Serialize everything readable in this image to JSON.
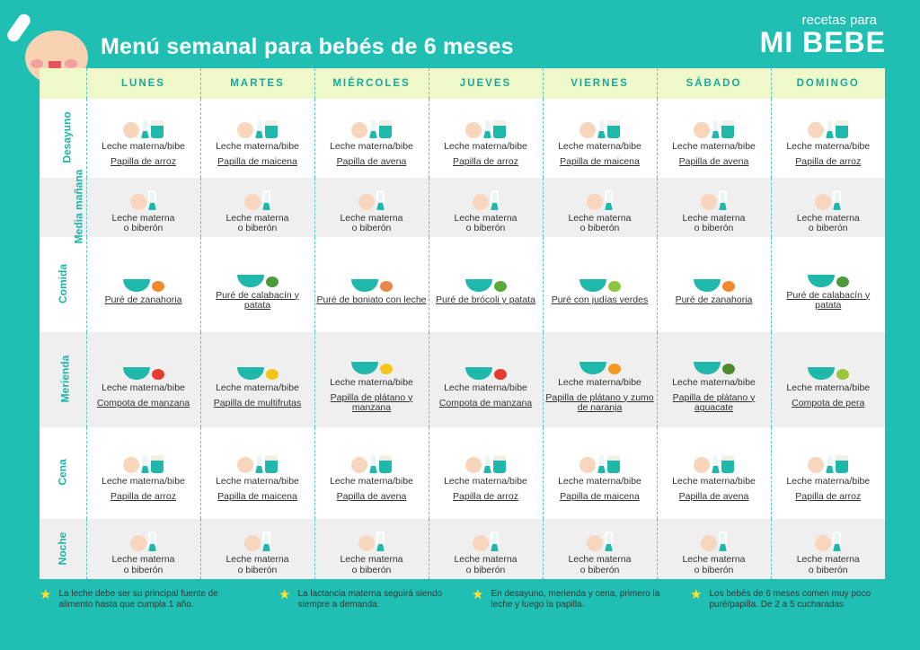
{
  "title": "Menú semanal para bebés de 6 meses",
  "logo": {
    "line1": "recetas para",
    "line2": "MI BEBE"
  },
  "days": [
    "LUNES",
    "MARTES",
    "MIÉRCOLES",
    "JUEVES",
    "VIERNES",
    "SÁBADO",
    "DOMINGO"
  ],
  "meals": [
    {
      "label": "Desayuno",
      "shaded": false,
      "icon": "breast-bottle-cereal-icon",
      "cells": [
        {
          "top": "Leche materna/bibe",
          "dish": "Papilla de arroz"
        },
        {
          "top": "Leche materna/bibe",
          "dish": "Papilla de maicena"
        },
        {
          "top": "Leche materna/bibe",
          "dish": "Papilla de avena"
        },
        {
          "top": "Leche materna/bibe",
          "dish": "Papilla de arroz"
        },
        {
          "top": "Leche materna/bibe",
          "dish": "Papilla de maicena"
        },
        {
          "top": "Leche materna/bibe",
          "dish": "Papilla de avena"
        },
        {
          "top": "Leche materna/bibe",
          "dish": "Papilla de arroz"
        }
      ]
    },
    {
      "label": "Media mañana",
      "shaded": true,
      "icon": "breast-bottle-icon",
      "cells": [
        {
          "top": "Leche materna",
          "dish2": "o biberón"
        },
        {
          "top": "Leche materna",
          "dish2": "o biberón"
        },
        {
          "top": "Leche materna",
          "dish2": "o biberón"
        },
        {
          "top": "Leche materna",
          "dish2": "o biberón"
        },
        {
          "top": "Leche materna",
          "dish2": "o biberón"
        },
        {
          "top": "Leche materna",
          "dish2": "o biberón"
        },
        {
          "top": "Leche materna",
          "dish2": "o biberón"
        }
      ]
    },
    {
      "label": "Comida",
      "shaded": false,
      "icon": "puree-bowl-icon",
      "cells": [
        {
          "dish": "Puré de zanahoria",
          "food": "#f08a2c"
        },
        {
          "dish": "Puré de calabacín y patata",
          "food": "#4c9a3a"
        },
        {
          "dish": "Puré de boniato con leche",
          "food": "#e8874a"
        },
        {
          "dish": "Puré de brócoli y patata",
          "food": "#5aa83a"
        },
        {
          "dish": "Puré con judías verdes",
          "food": "#8cc63f"
        },
        {
          "dish": "Puré de zanahoria",
          "food": "#f08a2c"
        },
        {
          "dish": "Puré de calabacín y patata",
          "food": "#4c9a3a"
        }
      ]
    },
    {
      "label": "Merienda",
      "shaded": true,
      "icon": "fruit-bowl-icon",
      "cells": [
        {
          "top": "Leche materna/bibe",
          "dish": "Compota de manzana",
          "food": "#e63b2e"
        },
        {
          "top": "Leche materna/bibe",
          "dish": "Papilla de multifrutas",
          "food": "#f5c518"
        },
        {
          "top": "Leche materna/bibe",
          "dish": "Papilla de plátano y manzana",
          "food": "#f5c518"
        },
        {
          "top": "Leche materna/bibe",
          "dish": "Compota de manzana",
          "food": "#e63b2e"
        },
        {
          "top": "Leche materna/bibe",
          "dish": "Papilla de plátano y zumo de naranja",
          "food": "#f39a1e"
        },
        {
          "top": "Leche materna/bibe",
          "dish": "Papilla de plátano y aguacate",
          "food": "#4f8a2e"
        },
        {
          "top": "Leche materna/bibe",
          "dish": "Compota de pera",
          "food": "#9bc53d"
        }
      ]
    },
    {
      "label": "Cena",
      "shaded": false,
      "icon": "breast-bottle-cereal-icon",
      "cells": [
        {
          "top": "Leche materna/bibe",
          "dish": "Papilla de arroz"
        },
        {
          "top": "Leche materna/bibe",
          "dish": "Papilla de maicena"
        },
        {
          "top": "Leche materna/bibe",
          "dish": "Papilla de avena"
        },
        {
          "top": "Leche materna/bibe",
          "dish": "Papilla de arroz"
        },
        {
          "top": "Leche materna/bibe",
          "dish": "Papilla de maicena"
        },
        {
          "top": "Leche materna/bibe",
          "dish": "Papilla de avena"
        },
        {
          "top": "Leche materna/bibe",
          "dish": "Papilla de arroz"
        }
      ]
    },
    {
      "label": "Noche",
      "shaded": true,
      "icon": "breast-bottle-icon",
      "cells": [
        {
          "top": "Leche materna",
          "dish2": "o biberón"
        },
        {
          "top": "Leche materna",
          "dish2": "o biberón"
        },
        {
          "top": "Leche materna",
          "dish2": "o biberón"
        },
        {
          "top": "Leche materna",
          "dish2": "o biberón"
        },
        {
          "top": "Leche materna",
          "dish2": "o biberón"
        },
        {
          "top": "Leche materna",
          "dish2": "o biberón"
        },
        {
          "top": "Leche materna",
          "dish2": "o biberón"
        }
      ]
    }
  ],
  "notes": [
    "La leche debe ser su principal fuente de alimento hasta que cumpla 1 año.",
    "La lactancia materna seguirá siendo siempre a demanda.",
    "En desayuno, merienda y cena, primero la leche y luego la papilla.",
    "Los bebés de 6 meses comen muy poco puré/papilla. De 2 a 5 cucharadas"
  ],
  "colors": {
    "background": "#1fbfb3",
    "header": "#eef8c8",
    "accent": "#1fb3a8",
    "star": "#ffe033"
  }
}
